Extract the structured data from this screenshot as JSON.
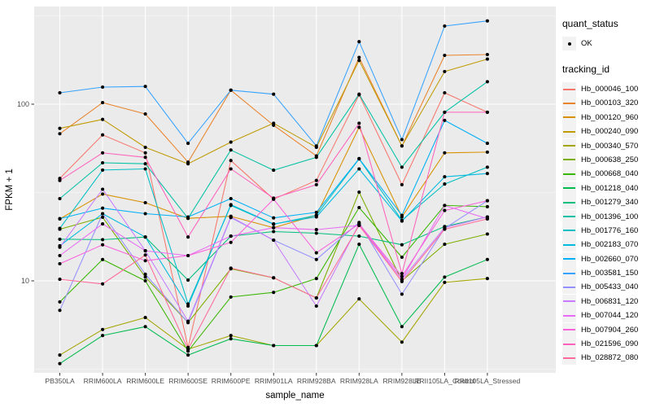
{
  "figure": {
    "background": "#FFFFFF",
    "panel_bg": "#EBEBEB",
    "grid_major_color": "#FFFFFF",
    "grid_minor_color": "#FFFFFF",
    "tick_mark_color": "#333333",
    "tick_label_color": "#4D4D4D",
    "axis_title_color": "#000000",
    "point_color": "#000000"
  },
  "axes": {
    "x_title": "sample_name",
    "y_title": "FPKM + 1"
  },
  "legend": {
    "quant_title": "quant_status",
    "quant_items": [
      {
        "label": "OK",
        "marker": "black-point"
      }
    ],
    "tracking_title": "tracking_id"
  },
  "chart_data": {
    "type": "line",
    "title": "",
    "xlabel": "sample_name",
    "ylabel": "FPKM + 1",
    "y_scale": "log10",
    "ylim": [
      2.8,
      370
    ],
    "y_major_ticks": [
      10,
      100
    ],
    "y_minor_gridlines": [
      3.162,
      31.62,
      316.2
    ],
    "grid": true,
    "legend_position": "right",
    "marker": "black-point",
    "categories": [
      "PB350LA",
      "RRIM600LA",
      "RRIM600LE",
      "RRIM600SE",
      "RRIM600PE",
      "RRIM901LA",
      "RRIM928BA",
      "RRIM928LA",
      "RRIM928LE",
      "RRII105LA_Control",
      "RRII105LA_Stressed"
    ],
    "series": [
      {
        "name": "Hb_000046_100",
        "color": "#F8766D",
        "values": [
          38,
          67,
          53,
          4.2,
          48,
          29,
          37,
          113,
          35,
          116,
          90
        ]
      },
      {
        "name": "Hb_000103_320",
        "color": "#E9842C",
        "values": [
          68,
          102,
          88,
          47,
          120,
          76,
          51,
          184,
          58,
          189,
          191
        ]
      },
      {
        "name": "Hb_000120_960",
        "color": "#D89000",
        "values": [
          22.4,
          31,
          27.7,
          22.6,
          23.2,
          20,
          23.5,
          74,
          23,
          53,
          53.5
        ]
      },
      {
        "name": "Hb_000240_090",
        "color": "#C09B06",
        "values": [
          73,
          82,
          57,
          46,
          61,
          78,
          57,
          177,
          58,
          153,
          180
        ]
      },
      {
        "name": "Hb_000340_570",
        "color": "#A3A500",
        "values": [
          3.8,
          5.3,
          6.2,
          4.1,
          4.9,
          4.3,
          4.3,
          7.9,
          4.5,
          9.8,
          10.3
        ]
      },
      {
        "name": "Hb_000638_250",
        "color": "#7CAE00",
        "values": [
          19.6,
          22.9,
          10.5,
          5.8,
          11.7,
          10.4,
          8.0,
          31.8,
          10.0,
          16.1,
          18.4
        ]
      },
      {
        "name": "Hb_000668_040",
        "color": "#39B600",
        "values": [
          7.6,
          13.2,
          10.0,
          4.0,
          8.1,
          8.6,
          10.3,
          26,
          13.6,
          26.7,
          26.3
        ]
      },
      {
        "name": "Hb_001218_040",
        "color": "#00BB4E",
        "values": [
          3.4,
          4.9,
          5.5,
          3.8,
          4.7,
          4.3,
          4.3,
          16.1,
          5.5,
          10.5,
          13.2
        ]
      },
      {
        "name": "Hb_001279_340",
        "color": "#00BF7D",
        "values": [
          17.2,
          17.1,
          17.7,
          10.1,
          17.9,
          19,
          18.6,
          17.9,
          16,
          20.3,
          23
        ]
      },
      {
        "name": "Hb_001396_100",
        "color": "#00C1A3",
        "values": [
          29.2,
          46.6,
          46,
          22.6,
          55,
          42.3,
          50,
          114,
          44,
          90,
          134
        ]
      },
      {
        "name": "Hb_001776_160",
        "color": "#00BFC4",
        "values": [
          19.8,
          42.4,
          43,
          7.4,
          26.7,
          20.9,
          23.5,
          49,
          22,
          35.3,
          44
        ]
      },
      {
        "name": "Hb_002183_070",
        "color": "#00BAE0",
        "values": [
          15.8,
          24,
          17.7,
          7.2,
          27,
          21,
          23,
          43,
          21.8,
          38.8,
          40.5
        ]
      },
      {
        "name": "Hb_002660_070",
        "color": "#00B0F6",
        "values": [
          22.5,
          25.8,
          24,
          23,
          29.2,
          22.7,
          24.4,
          49.2,
          23.5,
          81,
          60
        ]
      },
      {
        "name": "Hb_003581_150",
        "color": "#35A2FF",
        "values": [
          116,
          125,
          126,
          60,
          120,
          114,
          58,
          226,
          63,
          277,
          296
        ]
      },
      {
        "name": "Hb_005433_040",
        "color": "#9590FF",
        "values": [
          6.8,
          24,
          10.9,
          5.8,
          22.8,
          17,
          13.2,
          21.4,
          8.4,
          19.8,
          28.4
        ]
      },
      {
        "name": "Hb_006831_120",
        "color": "#C77CFF",
        "values": [
          15.5,
          33,
          14.8,
          5.9,
          23,
          17,
          7.2,
          21,
          10.2,
          20,
          23
        ]
      },
      {
        "name": "Hb_007044_120",
        "color": "#E76BF3",
        "values": [
          13.9,
          21,
          14.8,
          13.9,
          17.9,
          20,
          19.5,
          20.6,
          10.2,
          26.7,
          22.5
        ]
      },
      {
        "name": "Hb_007904_260",
        "color": "#FA62DB",
        "values": [
          12.5,
          16,
          13,
          13.9,
          16.5,
          29,
          14.4,
          21,
          10.6,
          25,
          28.4
        ]
      },
      {
        "name": "Hb_021596_090",
        "color": "#FF62BC",
        "values": [
          37,
          53,
          50,
          17.7,
          43,
          29.4,
          35,
          78,
          11,
          90,
          90
        ]
      },
      {
        "name": "Hb_028872_080",
        "color": "#FF6A98",
        "values": [
          10.2,
          9.6,
          14,
          4.1,
          11.8,
          10.4,
          8.0,
          20.6,
          9.9,
          19.6,
          22.4
        ]
      }
    ]
  }
}
